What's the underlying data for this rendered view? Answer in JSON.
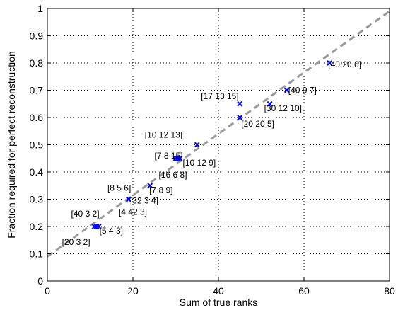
{
  "chart_data": {
    "type": "scatter",
    "xlabel": "Sum of true ranks",
    "ylabel": "Fraction required for perfect reconstruction",
    "xlim": [
      0,
      80
    ],
    "ylim": [
      0,
      1
    ],
    "xticks": [
      0,
      20,
      40,
      60,
      80
    ],
    "yticks": [
      0,
      0.1,
      0.2,
      0.3,
      0.4,
      0.5,
      0.6,
      0.7,
      0.8,
      0.9,
      1
    ],
    "xtick_labels": [
      "0",
      "20",
      "40",
      "60",
      "80"
    ],
    "ytick_labels": [
      "0",
      "0.1",
      "0.2",
      "0.3",
      "0.4",
      "0.5",
      "0.6",
      "0.7",
      "0.8",
      "0.9",
      "1"
    ],
    "grid": true,
    "marker_color": "#0000ff",
    "trend_line_color": "#999999",
    "trend_line": {
      "x": [
        0,
        80
      ],
      "y": [
        0.09,
        0.99
      ]
    },
    "points": [
      {
        "x": 11,
        "y": 0.2,
        "label": "[40 3 2]"
      },
      {
        "x": 12,
        "y": 0.2,
        "label": "[5 4 3]"
      },
      {
        "x": 11.5,
        "y": 0.2,
        "label": "[20 3 2]"
      },
      {
        "x": 19,
        "y": 0.3,
        "label": "[8 5 6]"
      },
      {
        "x": 19,
        "y": 0.3,
        "label": "[32 3 4]"
      },
      {
        "x": 19,
        "y": 0.3,
        "label": "[4 42 3]"
      },
      {
        "x": 24,
        "y": 0.35,
        "label": "[7 8 9]"
      },
      {
        "x": 30,
        "y": 0.45,
        "label": "[7 8 15]"
      },
      {
        "x": 31,
        "y": 0.45,
        "label": "[10 12 9]"
      },
      {
        "x": 30.5,
        "y": 0.45,
        "label": "[16 6 8]"
      },
      {
        "x": 35,
        "y": 0.5,
        "label": "[10 12 13]"
      },
      {
        "x": 45,
        "y": 0.65,
        "label": "[17 13 15]"
      },
      {
        "x": 45,
        "y": 0.6,
        "label": "[20 20 5]"
      },
      {
        "x": 52,
        "y": 0.65,
        "label": "[30 12 10]"
      },
      {
        "x": 56,
        "y": 0.7,
        "label": "[40 9 7]"
      },
      {
        "x": 66,
        "y": 0.8,
        "label": "[40 20 6]"
      }
    ]
  }
}
